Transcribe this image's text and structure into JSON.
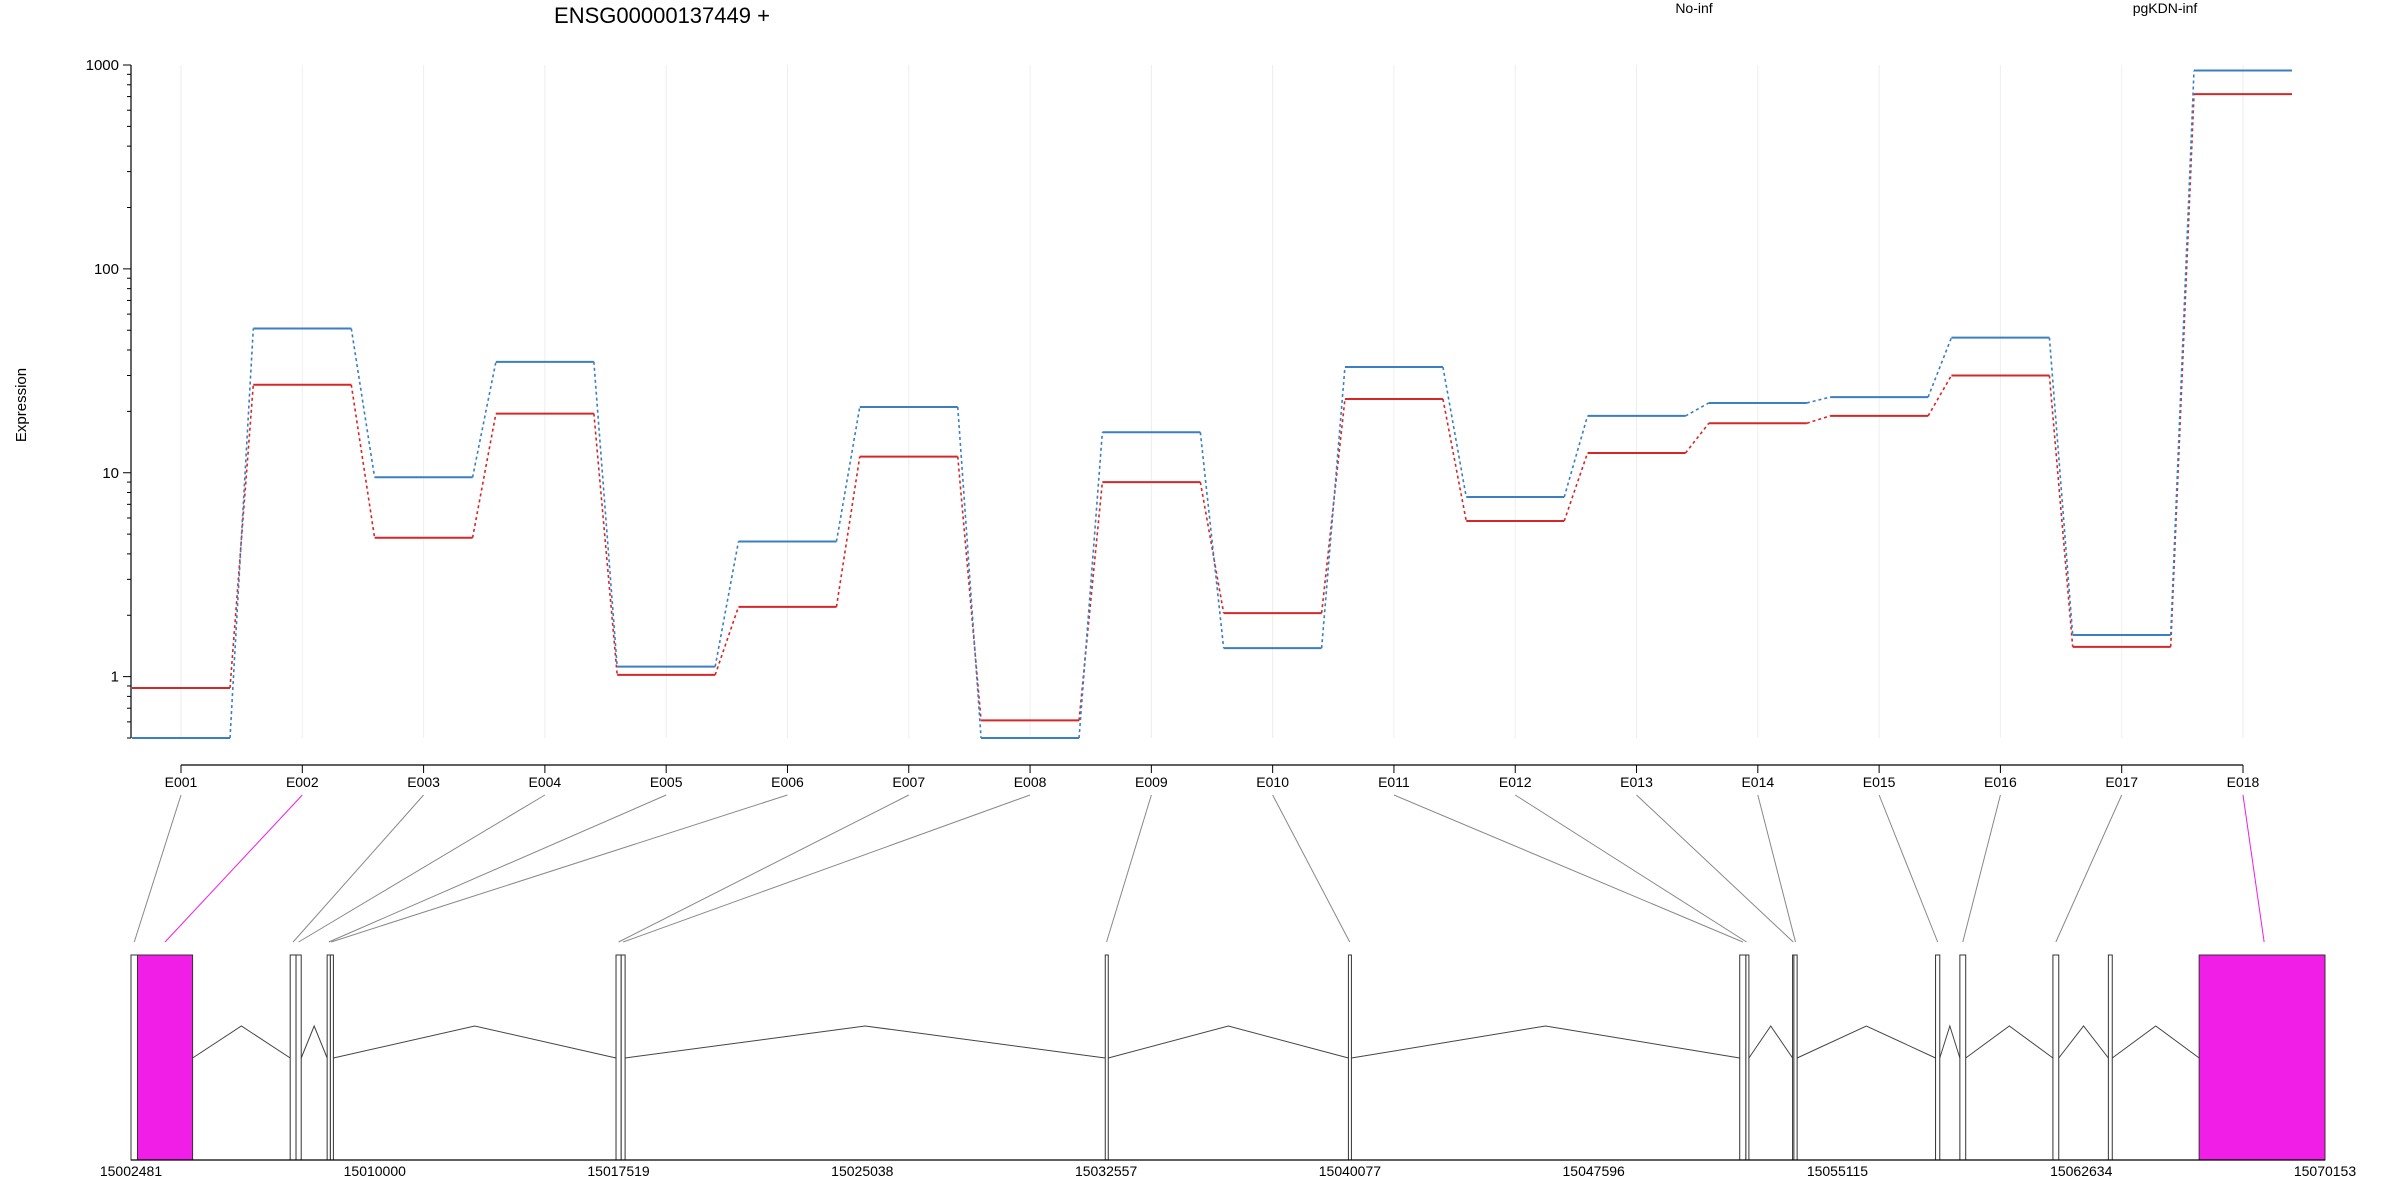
{
  "chart_data": {
    "type": "line",
    "title": "ENSG00000137449 +",
    "ylabel": "Expression",
    "y_scale": "log",
    "ylim": [
      0.5,
      1000
    ],
    "y_ticks": [
      "1000",
      "100",
      "10",
      "1"
    ],
    "y_tick_values": [
      1000,
      100,
      10,
      1
    ],
    "grid": "vertical, light",
    "legend_placement": "top-right",
    "categories": [
      "E001",
      "E002",
      "E003",
      "E004",
      "E005",
      "E006",
      "E007",
      "E008",
      "E009",
      "E010",
      "E011",
      "E012",
      "E013",
      "E014",
      "E015",
      "E016",
      "E017",
      "E018"
    ],
    "series": [
      {
        "name": "No-inf",
        "color": "#d62728",
        "values": [
          0.88,
          27,
          4.8,
          19.5,
          1.02,
          2.2,
          12,
          0.61,
          9,
          2.05,
          23,
          5.8,
          12.5,
          17.5,
          19,
          30,
          1.4,
          720
        ]
      },
      {
        "name": "pgKDN-inf",
        "color": "#3a7fc2",
        "values": [
          0.5,
          51,
          9.5,
          35,
          1.12,
          4.6,
          21,
          0.5,
          15.8,
          1.38,
          33,
          7.6,
          19,
          22,
          23.5,
          46,
          1.6,
          940
        ]
      }
    ],
    "gene_model": {
      "strand": "+",
      "coord_ticks": [
        "15002481",
        "15010000",
        "15017519",
        "15025038",
        "15032557",
        "15040077",
        "15047596",
        "15055115",
        "15062634",
        "15070153"
      ],
      "coord_tick_values": [
        15002481,
        15010000,
        15017519,
        15025038,
        15032557,
        15040077,
        15047596,
        15055115,
        15062634,
        15070153
      ],
      "exons": [
        {
          "id": "E001",
          "start": 15002481,
          "end": 15002681,
          "highlight": false
        },
        {
          "id": "E002",
          "start": 15002681,
          "end": 15004381,
          "highlight": true
        },
        {
          "id": "E003",
          "start": 15007391,
          "end": 15007571,
          "highlight": false
        },
        {
          "id": "E004",
          "start": 15007571,
          "end": 15007731,
          "highlight": false
        },
        {
          "id": "E005",
          "start": 15008531,
          "end": 15008631,
          "highlight": false
        },
        {
          "id": "E006",
          "start": 15008631,
          "end": 15008681,
          "highlight": false
        },
        {
          "id": "E007",
          "start": 15017441,
          "end": 15017601,
          "highlight": false
        },
        {
          "id": "E008",
          "start": 15017601,
          "end": 15017721,
          "highlight": false
        },
        {
          "id": "E009",
          "start": 15032531,
          "end": 15032611,
          "highlight": false
        },
        {
          "id": "E010",
          "start": 15040031,
          "end": 15040111,
          "highlight": false
        },
        {
          "id": "E011",
          "start": 15052101,
          "end": 15052291,
          "highlight": false
        },
        {
          "id": "E012",
          "start": 15052291,
          "end": 15052331,
          "highlight": false
        },
        {
          "id": "E013",
          "start": 15053731,
          "end": 15053771,
          "highlight": false
        },
        {
          "id": "E014",
          "start": 15053771,
          "end": 15053871,
          "highlight": false
        },
        {
          "id": "E015",
          "start": 15058141,
          "end": 15058271,
          "highlight": false
        },
        {
          "id": "E016",
          "start": 15058891,
          "end": 15059071,
          "highlight": false
        },
        {
          "id": "E017",
          "start": 15061761,
          "end": 15061941,
          "highlight": false
        },
        {
          "id": "E018",
          "start": 15063471,
          "end": 15063591,
          "highlight": false
        },
        {
          "id": "E018b",
          "start": 15066271,
          "end": 15070153,
          "highlight": true
        }
      ],
      "highlight_color": "#f01ee6"
    }
  }
}
